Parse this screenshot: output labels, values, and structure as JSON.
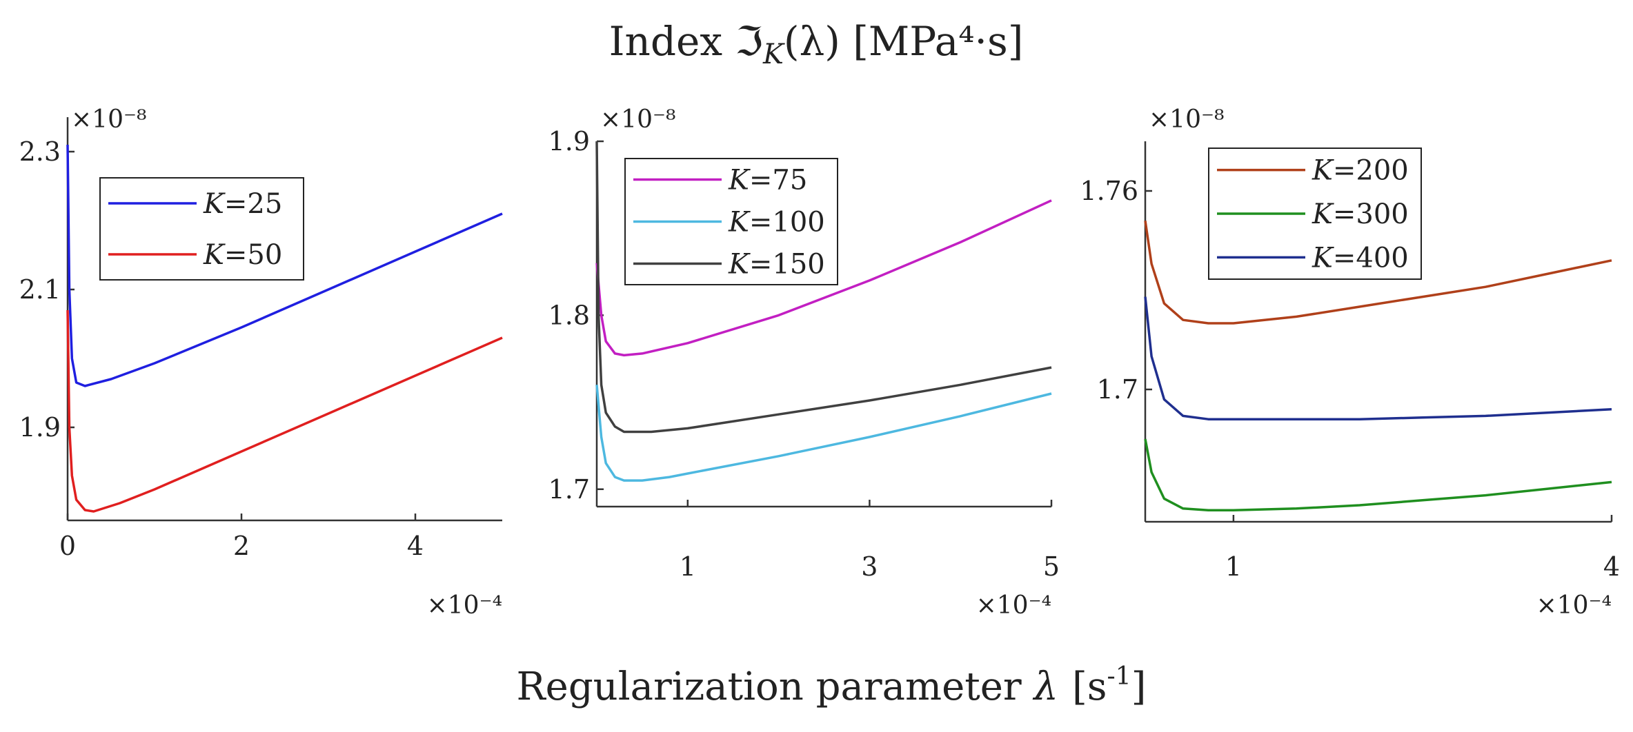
{
  "figure": {
    "title": "Index ℑ_K(λ) [MPa⁴·s]",
    "title_parts": {
      "prefix": "Index ",
      "symbol": "ℑ",
      "sub": "K",
      "lambda_part": "(λ)",
      "units": " [MPa⁴·s]"
    },
    "xlabel": "Regularization parameter λ  [s⁻¹]",
    "xlabel_parts": {
      "text": "Regularization parameter ",
      "lambda": "λ",
      "units_open": "[s",
      "units_exp": "-1",
      "units_close": "]"
    }
  },
  "chart_data": [
    {
      "type": "line",
      "y_multiplier": "×10⁻⁸",
      "x_multiplier": "×10⁻⁴",
      "xlim": [
        0,
        5
      ],
      "ylim": [
        1.765,
        2.35
      ],
      "xticks": [
        0,
        2,
        4
      ],
      "yticks": [
        1.9,
        2.1,
        2.3
      ],
      "xtick_labels": [
        "0",
        "2",
        "4"
      ],
      "ytick_labels": [
        "1.9",
        "2.1",
        "2.3"
      ],
      "legend": {
        "position": "top-left"
      },
      "series": [
        {
          "name": "K=25",
          "k_label": "K",
          "k_value": "=25",
          "color": "#1f1fe0",
          "x": [
            0.0,
            0.02,
            0.05,
            0.1,
            0.2,
            0.5,
            1,
            2,
            3,
            4,
            5
          ],
          "y": [
            2.31,
            2.1,
            2.0,
            1.965,
            1.96,
            1.97,
            1.993,
            2.045,
            2.1,
            2.155,
            2.21
          ]
        },
        {
          "name": "K=50",
          "k_label": "K",
          "k_value": "=50",
          "color": "#e01f1f",
          "x": [
            0.0,
            0.02,
            0.05,
            0.1,
            0.2,
            0.3,
            0.6,
            1,
            2,
            3,
            4,
            5
          ],
          "y": [
            2.07,
            1.9,
            1.83,
            1.795,
            1.78,
            1.778,
            1.79,
            1.81,
            1.865,
            1.92,
            1.975,
            2.03
          ]
        }
      ]
    },
    {
      "type": "line",
      "y_multiplier": "×10⁻⁸",
      "x_multiplier": "×10⁻⁴",
      "xlim": [
        0,
        5
      ],
      "ylim": [
        1.69,
        1.9
      ],
      "xticks": [
        1,
        3,
        5
      ],
      "yticks": [
        1.7,
        1.8,
        1.9
      ],
      "xtick_labels": [
        "1",
        "3",
        "5"
      ],
      "ytick_labels": [
        "1.7",
        "1.8",
        "1.9"
      ],
      "legend": {
        "position": "top-left"
      },
      "series": [
        {
          "name": "K=75",
          "k_label": "K",
          "k_value": "=75",
          "color": "#c21fc2",
          "x": [
            0.0,
            0.05,
            0.1,
            0.2,
            0.3,
            0.5,
            1,
            2,
            3,
            4,
            5
          ],
          "y": [
            1.83,
            1.8,
            1.785,
            1.778,
            1.777,
            1.778,
            1.784,
            1.8,
            1.82,
            1.842,
            1.866
          ]
        },
        {
          "name": "K=100",
          "k_label": "K",
          "k_value": "=100",
          "color": "#4db8e0",
          "x": [
            0.0,
            0.05,
            0.1,
            0.2,
            0.3,
            0.5,
            0.8,
            1,
            2,
            3,
            4,
            5
          ],
          "y": [
            1.76,
            1.73,
            1.715,
            1.707,
            1.705,
            1.705,
            1.707,
            1.709,
            1.719,
            1.73,
            1.742,
            1.755
          ]
        },
        {
          "name": "K=150",
          "k_label": "K",
          "k_value": "=150",
          "color": "#404040",
          "x": [
            0.0,
            0.02,
            0.05,
            0.1,
            0.2,
            0.3,
            0.6,
            1,
            2,
            3,
            4,
            5
          ],
          "y": [
            1.9,
            1.8,
            1.76,
            1.744,
            1.736,
            1.733,
            1.733,
            1.735,
            1.743,
            1.751,
            1.76,
            1.77
          ]
        }
      ]
    },
    {
      "type": "line",
      "y_multiplier": "×10⁻⁸",
      "x_multiplier": "×10⁻⁴",
      "xlim": [
        0.3,
        4
      ],
      "ylim": [
        1.66,
        1.775
      ],
      "xticks": [
        1,
        4
      ],
      "yticks": [
        1.7,
        1.76
      ],
      "xtick_labels": [
        "1",
        "4"
      ],
      "ytick_labels": [
        "1.7",
        "1.76"
      ],
      "legend": {
        "position": "top-left"
      },
      "series": [
        {
          "name": "K=200",
          "k_label": "K",
          "k_value": "=200",
          "color": "#b0401a",
          "x": [
            0.3,
            0.35,
            0.45,
            0.6,
            0.8,
            1,
            1.5,
            2,
            2.5,
            3,
            3.5,
            4
          ],
          "y": [
            1.751,
            1.738,
            1.726,
            1.721,
            1.72,
            1.72,
            1.722,
            1.725,
            1.728,
            1.731,
            1.735,
            1.739
          ]
        },
        {
          "name": "K=300",
          "k_label": "K",
          "k_value": "=300",
          "color": "#1f8f1f",
          "x": [
            0.3,
            0.35,
            0.45,
            0.6,
            0.8,
            1,
            1.5,
            2,
            2.5,
            3,
            3.5,
            4
          ],
          "y": [
            1.685,
            1.675,
            1.667,
            1.664,
            1.6635,
            1.6635,
            1.664,
            1.665,
            1.6665,
            1.668,
            1.67,
            1.672
          ]
        },
        {
          "name": "K=400",
          "k_label": "K",
          "k_value": "=400",
          "color": "#1f2f8f",
          "x": [
            0.3,
            0.35,
            0.45,
            0.6,
            0.8,
            1,
            1.5,
            2,
            2.5,
            3,
            3.5,
            4
          ],
          "y": [
            1.728,
            1.71,
            1.697,
            1.692,
            1.691,
            1.691,
            1.691,
            1.691,
            1.6915,
            1.692,
            1.693,
            1.694
          ]
        }
      ]
    }
  ]
}
